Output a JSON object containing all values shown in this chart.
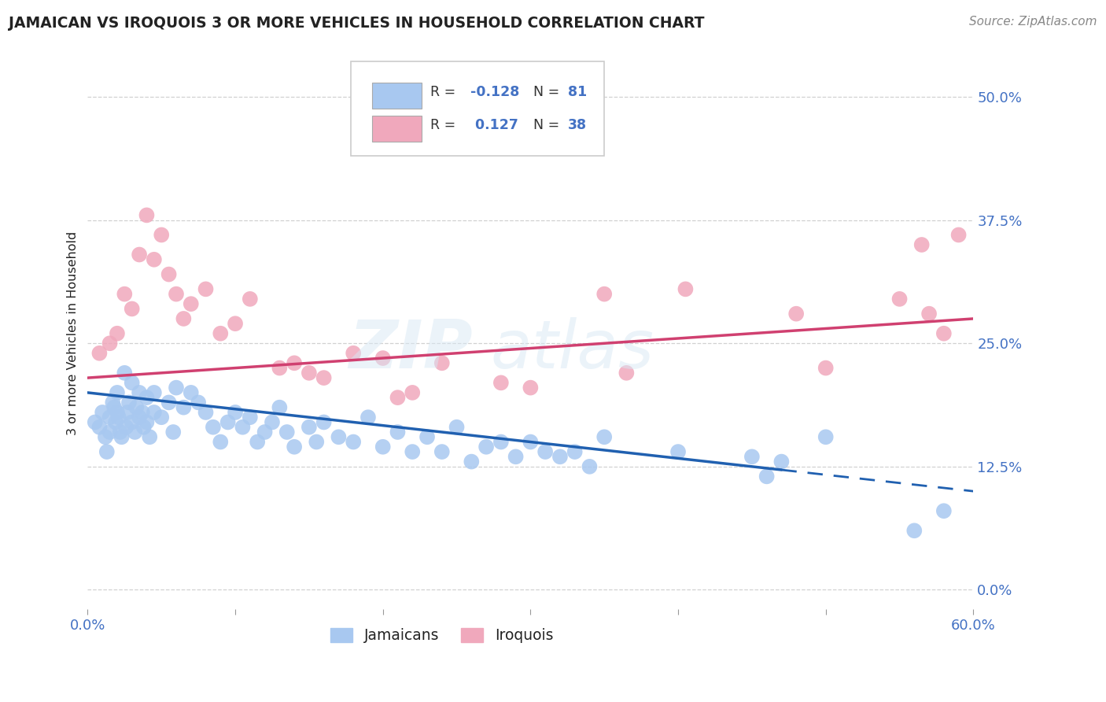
{
  "title": "JAMAICAN VS IROQUOIS 3 OR MORE VEHICLES IN HOUSEHOLD CORRELATION CHART",
  "source_text": "Source: ZipAtlas.com",
  "ylabel": "3 or more Vehicles in Household",
  "xlim": [
    0.0,
    60.0
  ],
  "ylim": [
    -2.0,
    54.0
  ],
  "yticks": [
    0.0,
    12.5,
    25.0,
    37.5,
    50.0
  ],
  "ytick_labels": [
    "0.0%",
    "12.5%",
    "25.0%",
    "37.5%",
    "50.0%"
  ],
  "xticks": [
    0,
    10,
    20,
    30,
    40,
    50,
    60
  ],
  "grid_color": "#cccccc",
  "background_color": "#ffffff",
  "jamaicans_color": "#a8c8f0",
  "iroquois_color": "#f0a8bc",
  "jamaicans_line_color": "#2060b0",
  "iroquois_line_color": "#d04070",
  "label_color": "#4472c4",
  "text_color": "#222222",
  "j_line_y0": 20.0,
  "j_line_y60": 10.0,
  "i_line_y0": 21.5,
  "i_line_y60": 27.5,
  "j_dash_start_x": 47.0,
  "jamaicans_x": [
    0.5,
    0.8,
    1.0,
    1.2,
    1.3,
    1.5,
    1.5,
    1.7,
    1.8,
    1.9,
    2.0,
    2.0,
    2.1,
    2.2,
    2.3,
    2.5,
    2.6,
    2.7,
    2.8,
    3.0,
    3.0,
    3.2,
    3.3,
    3.5,
    3.5,
    3.7,
    3.8,
    4.0,
    4.0,
    4.2,
    4.5,
    4.5,
    5.0,
    5.5,
    5.8,
    6.0,
    6.5,
    7.0,
    7.5,
    8.0,
    8.5,
    9.0,
    9.5,
    10.0,
    10.5,
    11.0,
    11.5,
    12.0,
    12.5,
    13.0,
    13.5,
    14.0,
    15.0,
    15.5,
    16.0,
    17.0,
    18.0,
    19.0,
    20.0,
    21.0,
    22.0,
    23.0,
    24.0,
    25.0,
    26.0,
    27.0,
    28.0,
    29.0,
    30.0,
    31.0,
    32.0,
    33.0,
    34.0,
    35.0,
    40.0,
    45.0,
    46.0,
    47.0,
    50.0,
    56.0,
    58.0
  ],
  "jamaicans_y": [
    17.0,
    16.5,
    18.0,
    15.5,
    14.0,
    17.5,
    16.0,
    19.0,
    18.5,
    17.0,
    20.0,
    18.0,
    17.5,
    16.0,
    15.5,
    22.0,
    16.5,
    18.0,
    19.0,
    21.0,
    17.0,
    16.0,
    18.5,
    20.0,
    17.5,
    18.0,
    16.5,
    19.5,
    17.0,
    15.5,
    20.0,
    18.0,
    17.5,
    19.0,
    16.0,
    20.5,
    18.5,
    20.0,
    19.0,
    18.0,
    16.5,
    15.0,
    17.0,
    18.0,
    16.5,
    17.5,
    15.0,
    16.0,
    17.0,
    18.5,
    16.0,
    14.5,
    16.5,
    15.0,
    17.0,
    15.5,
    15.0,
    17.5,
    14.5,
    16.0,
    14.0,
    15.5,
    14.0,
    16.5,
    13.0,
    14.5,
    15.0,
    13.5,
    15.0,
    14.0,
    13.5,
    14.0,
    12.5,
    15.5,
    14.0,
    13.5,
    11.5,
    13.0,
    15.5,
    6.0,
    8.0
  ],
  "iroquois_x": [
    0.8,
    1.5,
    2.0,
    2.5,
    3.0,
    3.5,
    4.0,
    4.5,
    5.0,
    5.5,
    6.0,
    6.5,
    7.0,
    8.0,
    9.0,
    10.0,
    11.0,
    13.0,
    14.0,
    15.0,
    16.0,
    18.0,
    20.0,
    21.0,
    22.0,
    24.0,
    28.0,
    30.0,
    35.0,
    36.5,
    40.5,
    48.0,
    50.0,
    55.0,
    56.5,
    57.0,
    58.0,
    59.0
  ],
  "iroquois_y": [
    24.0,
    25.0,
    26.0,
    30.0,
    28.5,
    34.0,
    38.0,
    33.5,
    36.0,
    32.0,
    30.0,
    27.5,
    29.0,
    30.5,
    26.0,
    27.0,
    29.5,
    22.5,
    23.0,
    22.0,
    21.5,
    24.0,
    23.5,
    19.5,
    20.0,
    23.0,
    21.0,
    20.5,
    30.0,
    22.0,
    30.5,
    28.0,
    22.5,
    29.5,
    35.0,
    28.0,
    26.0,
    36.0
  ]
}
